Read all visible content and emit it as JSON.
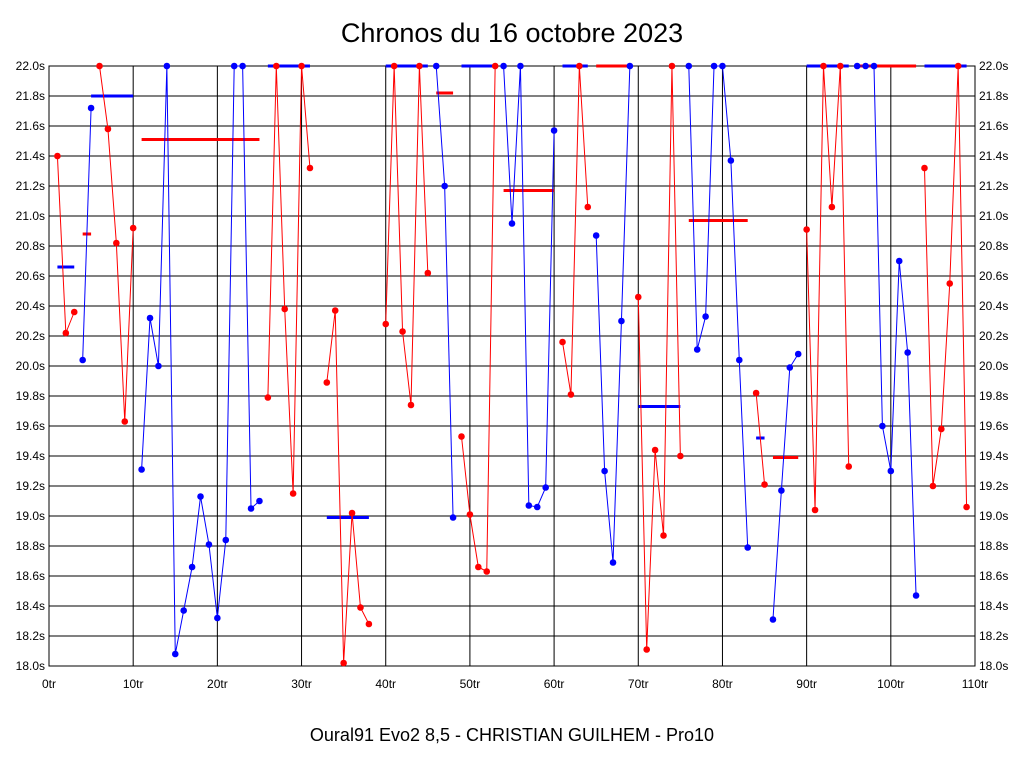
{
  "chart_data": {
    "type": "line",
    "title": "Chronos du 16 octobre 2023",
    "subtitle": "Oural91  Evo2  8,5 - CHRISTIAN GUILHEM - Pro10",
    "xlim": [
      0,
      110
    ],
    "ylim": [
      18.0,
      22.0
    ],
    "x_ticks": [
      0,
      10,
      20,
      30,
      40,
      50,
      60,
      70,
      80,
      90,
      100,
      110
    ],
    "x_tick_labels": [
      "0tr",
      "10tr",
      "20tr",
      "30tr",
      "40tr",
      "50tr",
      "60tr",
      "70tr",
      "80tr",
      "90tr",
      "100tr",
      "110tr"
    ],
    "y_ticks": [
      18.0,
      18.2,
      18.4,
      18.6,
      18.8,
      19.0,
      19.2,
      19.4,
      19.6,
      19.8,
      20.0,
      20.2,
      20.4,
      20.6,
      20.8,
      21.0,
      21.2,
      21.4,
      21.6,
      21.8,
      22.0
    ],
    "y_tick_labels": [
      "18.0s",
      "18.2s",
      "18.4s",
      "18.6s",
      "18.8s",
      "19.0s",
      "19.2s",
      "19.4s",
      "19.6s",
      "19.8s",
      "20.0s",
      "20.2s",
      "20.4s",
      "20.6s",
      "20.8s",
      "21.0s",
      "21.2s",
      "21.4s",
      "21.6s",
      "21.8s",
      "22.0s"
    ],
    "grid": true,
    "colors": {
      "red": "#ff0000",
      "blue": "#0000ff",
      "grid": "#000000"
    },
    "series": [
      {
        "color": "red",
        "x": [
          1,
          2,
          3
        ],
        "y": [
          21.4,
          20.22,
          20.36
        ]
      },
      {
        "color": "blue",
        "x": [
          4,
          5
        ],
        "y": [
          20.04,
          21.72
        ]
      },
      {
        "color": "red",
        "x": [
          6,
          7,
          8,
          9,
          10
        ],
        "y": [
          22.0,
          21.58,
          20.82,
          19.63,
          20.92
        ]
      },
      {
        "color": "blue",
        "x": [
          11,
          12,
          13,
          14,
          15,
          16,
          17,
          18,
          19,
          20,
          21,
          22,
          23,
          24,
          25
        ],
        "y": [
          19.31,
          20.32,
          20.0,
          22.0,
          18.08,
          18.37,
          18.66,
          19.13,
          18.81,
          18.32,
          18.84,
          22.0,
          22.0,
          19.05,
          19.1
        ]
      },
      {
        "color": "red",
        "x": [
          26,
          27,
          28,
          29,
          30,
          31
        ],
        "y": [
          19.79,
          22.0,
          20.38,
          19.15,
          22.0,
          21.32
        ]
      },
      {
        "color": "red",
        "x": [
          33,
          34,
          35,
          36,
          37,
          38
        ],
        "y": [
          19.89,
          20.37,
          18.02,
          19.02,
          18.39,
          18.28
        ]
      },
      {
        "color": "red",
        "x": [
          40,
          41,
          42,
          43,
          44,
          45
        ],
        "y": [
          20.28,
          22.0,
          20.23,
          19.74,
          22.0,
          20.62
        ]
      },
      {
        "color": "blue",
        "x": [
          46,
          47,
          48
        ],
        "y": [
          22.0,
          21.2,
          18.99
        ]
      },
      {
        "color": "red",
        "x": [
          49,
          50,
          51,
          52,
          53
        ],
        "y": [
          19.53,
          19.01,
          18.66,
          18.63,
          22.0
        ]
      },
      {
        "color": "blue",
        "x": [
          54,
          55,
          56,
          57,
          58,
          59,
          60
        ],
        "y": [
          22.0,
          20.95,
          22.0,
          19.07,
          19.06,
          19.19,
          21.57
        ]
      },
      {
        "color": "red",
        "x": [
          61,
          62,
          63,
          64
        ],
        "y": [
          20.16,
          19.81,
          22.0,
          21.06
        ]
      },
      {
        "color": "blue",
        "x": [
          65,
          66,
          67,
          68,
          69
        ],
        "y": [
          20.87,
          19.3,
          18.69,
          20.3,
          22.0
        ]
      },
      {
        "color": "red",
        "x": [
          70,
          71,
          72,
          73,
          74,
          75
        ],
        "y": [
          20.46,
          18.11,
          19.44,
          18.87,
          22.0,
          19.4
        ]
      },
      {
        "color": "blue",
        "x": [
          76,
          77,
          78,
          79,
          80,
          81,
          82,
          83
        ],
        "y": [
          22.0,
          20.11,
          20.33,
          22.0,
          22.0,
          21.37,
          20.04,
          18.79
        ]
      },
      {
        "color": "red",
        "x": [
          84,
          85
        ],
        "y": [
          19.82,
          19.21
        ]
      },
      {
        "color": "blue",
        "x": [
          86,
          87,
          88,
          89
        ],
        "y": [
          18.31,
          19.17,
          19.99,
          20.08
        ]
      },
      {
        "color": "red",
        "x": [
          90,
          91,
          92,
          93,
          94,
          95
        ],
        "y": [
          20.91,
          19.04,
          22.0,
          21.06,
          22.0,
          19.33
        ]
      },
      {
        "color": "blue",
        "x": [
          96,
          97,
          98,
          99,
          100,
          101,
          102,
          103
        ],
        "y": [
          22.0,
          22.0,
          22.0,
          19.6,
          19.3,
          20.7,
          20.09,
          18.47
        ]
      },
      {
        "color": "red",
        "x": [
          104,
          105,
          106,
          107,
          108,
          109
        ],
        "y": [
          21.32,
          19.2,
          19.58,
          20.55,
          22.0,
          19.06
        ]
      }
    ],
    "average_lines": [
      {
        "color": "blue",
        "x": [
          1,
          3
        ],
        "y": 20.66
      },
      {
        "color": "red",
        "x": [
          4,
          5
        ],
        "y": 20.88
      },
      {
        "color": "blue",
        "x": [
          5,
          10
        ],
        "y": 21.8
      },
      {
        "color": "red",
        "x": [
          11,
          25
        ],
        "y": 21.51
      },
      {
        "color": "blue",
        "x": [
          26,
          31
        ],
        "y": 22.0
      },
      {
        "color": "blue",
        "x": [
          33,
          38
        ],
        "y": 18.99
      },
      {
        "color": "blue",
        "x": [
          40,
          45
        ],
        "y": 22.0
      },
      {
        "color": "red",
        "x": [
          46,
          48
        ],
        "y": 21.82
      },
      {
        "color": "blue",
        "x": [
          49,
          53
        ],
        "y": 22.0
      },
      {
        "color": "red",
        "x": [
          54,
          60
        ],
        "y": 21.17
      },
      {
        "color": "blue",
        "x": [
          61,
          64
        ],
        "y": 22.0
      },
      {
        "color": "red",
        "x": [
          65,
          69
        ],
        "y": 22.0
      },
      {
        "color": "blue",
        "x": [
          70,
          75
        ],
        "y": 19.73
      },
      {
        "color": "red",
        "x": [
          76,
          83
        ],
        "y": 20.97
      },
      {
        "color": "blue",
        "x": [
          84,
          85
        ],
        "y": 19.52
      },
      {
        "color": "red",
        "x": [
          86,
          89
        ],
        "y": 19.39
      },
      {
        "color": "blue",
        "x": [
          90,
          95
        ],
        "y": 22.0
      },
      {
        "color": "red",
        "x": [
          96,
          103
        ],
        "y": 22.0
      },
      {
        "color": "blue",
        "x": [
          104,
          109
        ],
        "y": 22.0
      }
    ]
  }
}
